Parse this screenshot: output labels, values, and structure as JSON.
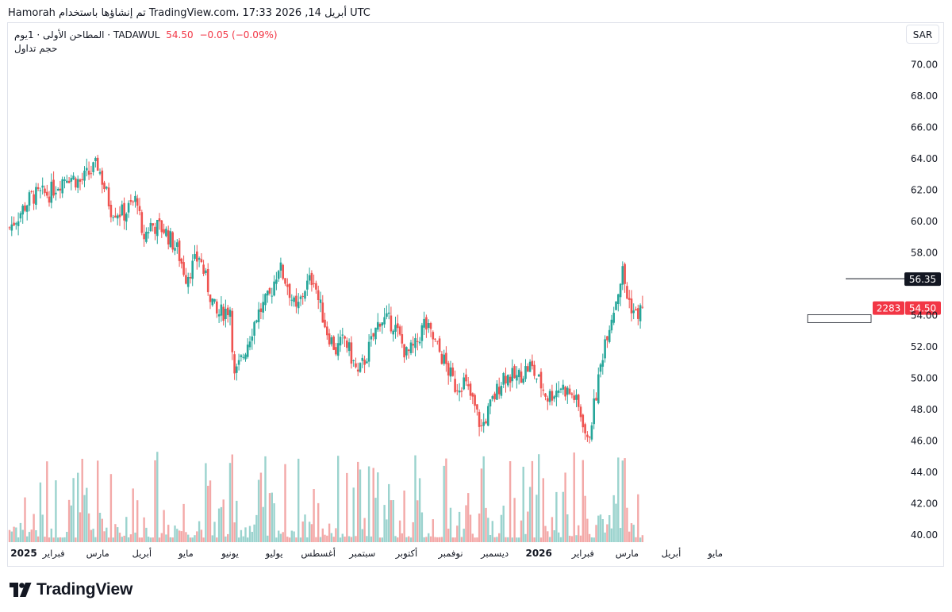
{
  "header": {
    "text": "Hamorah تم إنشاؤها باستخدام TradingView.com، 17:33 2026 ,أبريل 14 UTC"
  },
  "legend": {
    "symbol_line": "المطاحن الأولى · 1يوم · TADAWUL",
    "price": "54.50",
    "change": "−0.05 (−0.09%)",
    "volume_label": "حجم تداول"
  },
  "currency": "SAR",
  "logo_text": "TradingView",
  "colors": {
    "up": "#26a69a",
    "down": "#ef5350",
    "vol_up": "#9bd3ce",
    "vol_down": "#f3a9a8",
    "price_tag": "#f23645",
    "dark_tag": "#131722"
  },
  "chart_data": {
    "type": "candlestick",
    "symbol": "TADAWUL",
    "interval": "1D",
    "ylim": [
      40,
      71
    ],
    "y_ticks": [
      "70.00",
      "68.00",
      "66.00",
      "64.00",
      "62.00",
      "60.00",
      "58.00",
      "56.00",
      "54.00",
      "52.00",
      "50.00",
      "48.00",
      "46.00",
      "44.00",
      "42.00",
      "40.00"
    ],
    "x_ticks": [
      {
        "label": "2025",
        "pos": 0.0,
        "bold": true
      },
      {
        "label": "فبراير",
        "pos": 1.0
      },
      {
        "label": "مارس",
        "pos": 2.0
      },
      {
        "label": "أبريل",
        "pos": 3.0
      },
      {
        "label": "مايو",
        "pos": 4.0
      },
      {
        "label": "يونيو",
        "pos": 5.0
      },
      {
        "label": "يوليو",
        "pos": 6.0
      },
      {
        "label": "أغسطس",
        "pos": 7.0
      },
      {
        "label": "سبتمبر",
        "pos": 8.0
      },
      {
        "label": "أكتوبر",
        "pos": 9.0
      },
      {
        "label": "نوفمبر",
        "pos": 10.0
      },
      {
        "label": "ديسمبر",
        "pos": 11.0
      },
      {
        "label": "2026",
        "pos": 12.0,
        "bold": true
      },
      {
        "label": "فبراير",
        "pos": 13.0
      },
      {
        "label": "مارس",
        "pos": 14.0
      },
      {
        "label": "أبريل",
        "pos": 15.0
      },
      {
        "label": "مايو",
        "pos": 16.0
      }
    ],
    "month_closes": [
      {
        "m": 0.0,
        "c": 59.6
      },
      {
        "m": 0.5,
        "c": 61.6
      },
      {
        "m": 0.9,
        "c": 61.8
      },
      {
        "m": 1.3,
        "c": 63.0
      },
      {
        "m": 1.6,
        "c": 62.5
      },
      {
        "m": 2.0,
        "c": 63.6
      },
      {
        "m": 2.3,
        "c": 60.8
      },
      {
        "m": 2.6,
        "c": 60.5
      },
      {
        "m": 2.9,
        "c": 61.5
      },
      {
        "m": 3.0,
        "c": 58.8
      },
      {
        "m": 3.2,
        "c": 59.8
      },
      {
        "m": 3.5,
        "c": 59.5
      },
      {
        "m": 3.8,
        "c": 58.2
      },
      {
        "m": 4.0,
        "c": 56.5
      },
      {
        "m": 4.3,
        "c": 57.8
      },
      {
        "m": 4.5,
        "c": 55.8
      },
      {
        "m": 4.7,
        "c": 54.0
      },
      {
        "m": 5.0,
        "c": 54.5
      },
      {
        "m": 5.1,
        "c": 50.0
      },
      {
        "m": 5.3,
        "c": 51.5
      },
      {
        "m": 5.6,
        "c": 54.0
      },
      {
        "m": 5.9,
        "c": 55.2
      },
      {
        "m": 6.1,
        "c": 57.2
      },
      {
        "m": 6.3,
        "c": 56.0
      },
      {
        "m": 6.5,
        "c": 54.2
      },
      {
        "m": 6.7,
        "c": 55.8
      },
      {
        "m": 6.9,
        "c": 56.5
      },
      {
        "m": 7.0,
        "c": 55.0
      },
      {
        "m": 7.2,
        "c": 53.0
      },
      {
        "m": 7.4,
        "c": 51.8
      },
      {
        "m": 7.6,
        "c": 52.5
      },
      {
        "m": 7.9,
        "c": 50.2
      },
      {
        "m": 8.1,
        "c": 51.5
      },
      {
        "m": 8.4,
        "c": 53.8
      },
      {
        "m": 8.7,
        "c": 53.5
      },
      {
        "m": 9.0,
        "c": 51.5
      },
      {
        "m": 9.2,
        "c": 52.0
      },
      {
        "m": 9.4,
        "c": 53.5
      },
      {
        "m": 9.6,
        "c": 52.5
      },
      {
        "m": 9.9,
        "c": 50.8
      },
      {
        "m": 10.1,
        "c": 49.5
      },
      {
        "m": 10.3,
        "c": 49.8
      },
      {
        "m": 10.5,
        "c": 48.5
      },
      {
        "m": 10.7,
        "c": 46.8
      },
      {
        "m": 10.9,
        "c": 48.2
      },
      {
        "m": 11.2,
        "c": 50.2
      },
      {
        "m": 11.5,
        "c": 50.0
      },
      {
        "m": 11.8,
        "c": 50.8
      },
      {
        "m": 12.0,
        "c": 49.8
      },
      {
        "m": 12.2,
        "c": 48.8
      },
      {
        "m": 12.5,
        "c": 49.5
      },
      {
        "m": 12.8,
        "c": 48.8
      },
      {
        "m": 13.0,
        "c": 47.3
      },
      {
        "m": 13.1,
        "c": 45.8
      },
      {
        "m": 13.3,
        "c": 49.0
      },
      {
        "m": 13.5,
        "c": 52.5
      },
      {
        "m": 13.7,
        "c": 54.5
      },
      {
        "m": 13.9,
        "c": 56.8
      },
      {
        "m": 14.0,
        "c": 55.2
      },
      {
        "m": 14.2,
        "c": 54.0
      },
      {
        "m": 14.35,
        "c": 54.5
      }
    ],
    "last_price": 54.5,
    "last_price_label": "54.50",
    "countdown_label": "2283",
    "marker_price": 56.35,
    "marker_label": "56.35",
    "volume_scale_max": 1.0
  }
}
